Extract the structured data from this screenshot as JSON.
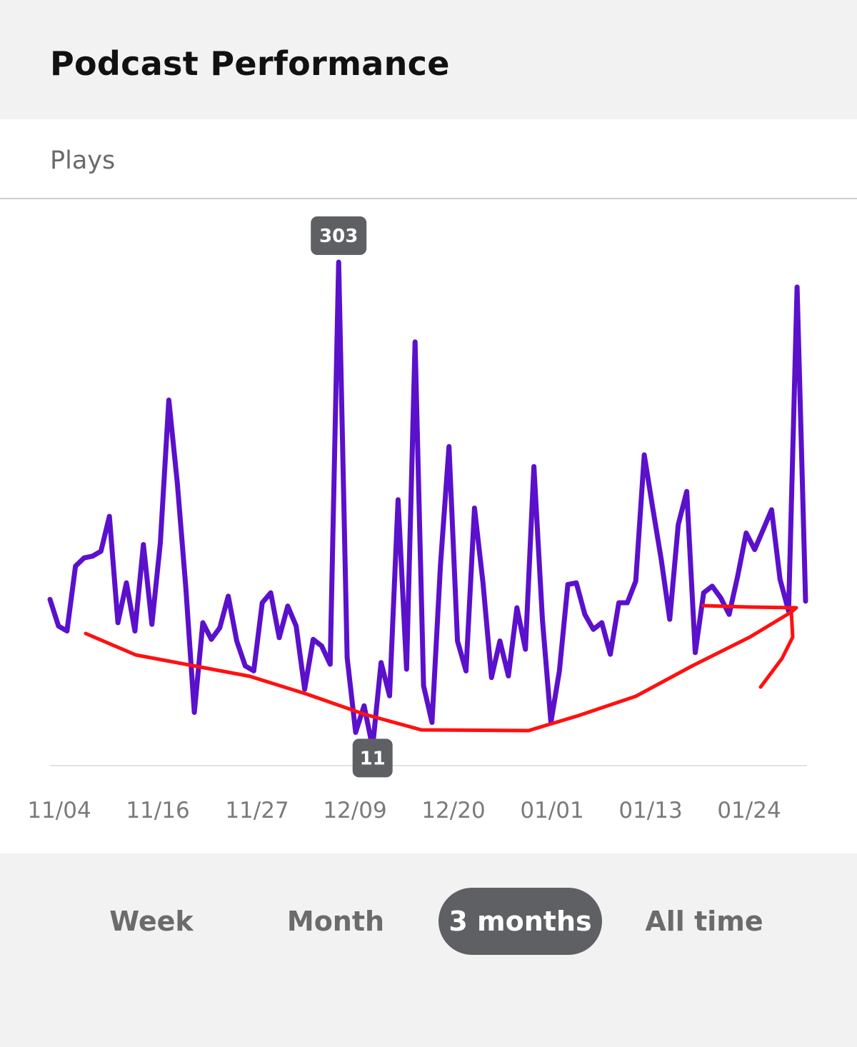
{
  "header": {
    "title": "Podcast Performance"
  },
  "metric": {
    "label": "Plays"
  },
  "chart_data": {
    "type": "line",
    "x_tick_labels": [
      "11/04",
      "11/16",
      "11/27",
      "12/09",
      "12/20",
      "01/01",
      "01/13",
      "01/24"
    ],
    "series": [
      {
        "color": "#5b10cc",
        "values": [
          100,
          84,
          81,
          120,
          125,
          126,
          129,
          150,
          86,
          110,
          81,
          133,
          85,
          134,
          220,
          170,
          107,
          32,
          86,
          76,
          83,
          102,
          75,
          60,
          57,
          98,
          104,
          77,
          96,
          84,
          46,
          76,
          72,
          61,
          303,
          65,
          20,
          36,
          11,
          62,
          42,
          160,
          58,
          255,
          48,
          26,
          121,
          192,
          75,
          57,
          155,
          110,
          53,
          75,
          54,
          95,
          70,
          180,
          88,
          26,
          57,
          109,
          110,
          91,
          82,
          86,
          67,
          98,
          98,
          111,
          187,
          155,
          124,
          88,
          145,
          165,
          68,
          104,
          108,
          101,
          91,
          114,
          140,
          130,
          142,
          154,
          112,
          93,
          288,
          99
        ]
      }
    ],
    "annotations": [
      {
        "label": "303",
        "type": "max"
      },
      {
        "label": "11",
        "type": "min"
      }
    ],
    "ylim": [
      0,
      303
    ]
  },
  "tabs": [
    {
      "label": "Week",
      "active": false
    },
    {
      "label": "Month",
      "active": false
    },
    {
      "label": "3 months",
      "active": true
    },
    {
      "label": "All time",
      "active": false
    }
  ],
  "colors": {
    "line": "#5b10cc",
    "hand_drawn_mark": "#ff1010",
    "active_tab": "#5f6064",
    "tooltip": "#5f6064"
  }
}
